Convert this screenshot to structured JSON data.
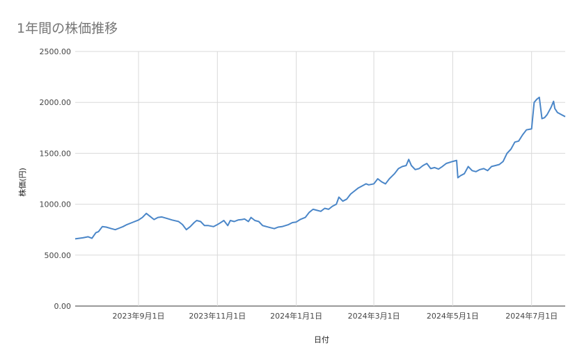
{
  "chart_data": {
    "type": "line",
    "title": "1年間の株価推移",
    "xlabel": "日付",
    "ylabel": "株価(円)",
    "ylim": [
      0,
      2500
    ],
    "yticks": [
      "2500.00",
      "2000.00",
      "1500.00",
      "1000.00",
      "500.00",
      "0.00"
    ],
    "xticks": [
      {
        "date": "2023-09-01",
        "label": "2023年9月1日"
      },
      {
        "date": "2023-11-01",
        "label": "2023年11月1日"
      },
      {
        "date": "2024-01-01",
        "label": "2024年1月1日"
      },
      {
        "date": "2024-03-01",
        "label": "2024年3月1日"
      },
      {
        "date": "2024-05-01",
        "label": "2024年5月1日"
      },
      {
        "date": "2024-07-01",
        "label": "2024年7月1日"
      }
    ],
    "xlim": [
      "2023-07-14",
      "2024-07-27"
    ],
    "grid": true,
    "colors": {
      "line": "#4a86c8",
      "grid": "#d9d9d9"
    },
    "series": [
      {
        "x": [
          "2023-07-14",
          "2023-07-20",
          "2023-07-24",
          "2023-07-27",
          "2023-07-30",
          "2023-08-01",
          "2023-08-04",
          "2023-08-07",
          "2023-08-11",
          "2023-08-14",
          "2023-08-17",
          "2023-08-20",
          "2023-08-23",
          "2023-08-27",
          "2023-09-01",
          "2023-09-04",
          "2023-09-07",
          "2023-09-10",
          "2023-09-13",
          "2023-09-16",
          "2023-09-19",
          "2023-09-23",
          "2023-09-27",
          "2023-10-02",
          "2023-10-05",
          "2023-10-08",
          "2023-10-11",
          "2023-10-14",
          "2023-10-16",
          "2023-10-19",
          "2023-10-22",
          "2023-10-25",
          "2023-10-29",
          "2023-11-01",
          "2023-11-03",
          "2023-11-06",
          "2023-11-09",
          "2023-11-11",
          "2023-11-14",
          "2023-11-17",
          "2023-11-20",
          "2023-11-22",
          "2023-11-25",
          "2023-11-27",
          "2023-11-30",
          "2023-12-03",
          "2023-12-06",
          "2023-12-09",
          "2023-12-12",
          "2023-12-15",
          "2023-12-18",
          "2023-12-21",
          "2023-12-26",
          "2023-12-29",
          "2024-01-01",
          "2024-01-04",
          "2024-01-08",
          "2024-01-11",
          "2024-01-14",
          "2024-01-17",
          "2024-01-20",
          "2024-01-23",
          "2024-01-26",
          "2024-01-29",
          "2024-02-01",
          "2024-02-03",
          "2024-02-06",
          "2024-02-09",
          "2024-02-12",
          "2024-02-15",
          "2024-02-18",
          "2024-02-21",
          "2024-02-24",
          "2024-02-26",
          "2024-03-01",
          "2024-03-04",
          "2024-03-07",
          "2024-03-10",
          "2024-03-13",
          "2024-03-17",
          "2024-03-20",
          "2024-03-23",
          "2024-03-26",
          "2024-03-28",
          "2024-03-30",
          "2024-04-02",
          "2024-04-05",
          "2024-04-08",
          "2024-04-11",
          "2024-04-14",
          "2024-04-17",
          "2024-04-20",
          "2024-04-23",
          "2024-04-26",
          "2024-05-01",
          "2024-05-04",
          "2024-05-05",
          "2024-05-07",
          "2024-05-10",
          "2024-05-13",
          "2024-05-16",
          "2024-05-19",
          "2024-05-22",
          "2024-05-25",
          "2024-05-28",
          "2024-05-31",
          "2024-06-03",
          "2024-06-06",
          "2024-06-09",
          "2024-06-12",
          "2024-06-15",
          "2024-06-18",
          "2024-06-21",
          "2024-06-24",
          "2024-06-27",
          "2024-07-01",
          "2024-07-03",
          "2024-07-05",
          "2024-07-07",
          "2024-07-09",
          "2024-07-11",
          "2024-07-13",
          "2024-07-16",
          "2024-07-18",
          "2024-07-19",
          "2024-07-21",
          "2024-07-24",
          "2024-07-27"
        ],
        "values": [
          660,
          670,
          680,
          665,
          720,
          730,
          780,
          775,
          760,
          750,
          765,
          780,
          800,
          820,
          845,
          870,
          910,
          880,
          850,
          870,
          875,
          860,
          845,
          830,
          800,
          750,
          780,
          820,
          840,
          830,
          790,
          790,
          780,
          800,
          815,
          840,
          790,
          840,
          830,
          845,
          850,
          855,
          830,
          870,
          840,
          830,
          790,
          780,
          770,
          760,
          775,
          780,
          800,
          820,
          825,
          850,
          870,
          920,
          950,
          940,
          930,
          960,
          950,
          980,
          1000,
          1070,
          1030,
          1050,
          1100,
          1130,
          1160,
          1180,
          1200,
          1190,
          1200,
          1250,
          1220,
          1200,
          1250,
          1300,
          1350,
          1370,
          1380,
          1440,
          1380,
          1340,
          1350,
          1380,
          1400,
          1350,
          1360,
          1345,
          1370,
          1400,
          1420,
          1430,
          1260,
          1280,
          1300,
          1370,
          1330,
          1320,
          1340,
          1350,
          1330,
          1370,
          1380,
          1390,
          1420,
          1500,
          1540,
          1610,
          1620,
          1680,
          1730,
          1740,
          2000,
          2030,
          2050,
          1840,
          1850,
          1880,
          1950,
          2010,
          1940,
          1900,
          1880,
          1860
        ]
      }
    ]
  }
}
